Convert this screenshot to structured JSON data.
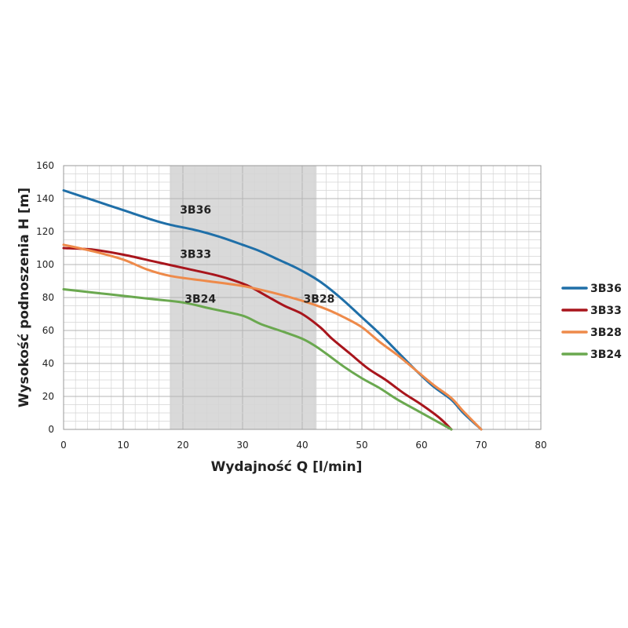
{
  "chart_data": {
    "type": "line",
    "xlabel": "Wydajność Q [l/min]",
    "ylabel": "Wysokość podnoszenia H [m]",
    "xlim": [
      0,
      80
    ],
    "ylim": [
      0,
      160
    ],
    "x_ticks": [
      0,
      10,
      20,
      30,
      40,
      50,
      60,
      70,
      80
    ],
    "y_ticks": [
      0,
      20,
      40,
      60,
      80,
      100,
      120,
      140,
      160
    ],
    "grid": true,
    "minor_grid": true,
    "legend_position": "right",
    "highlight_band": {
      "x": [
        17.8,
        42.4
      ],
      "color": "#d9d9d9"
    },
    "series": [
      {
        "name": "3B36",
        "color": "#1f6fa8",
        "label_at": [
          19.5,
          131
        ],
        "points": [
          [
            0,
            145
          ],
          [
            5,
            139
          ],
          [
            10,
            133
          ],
          [
            15,
            127
          ],
          [
            18,
            124
          ],
          [
            22,
            121
          ],
          [
            26,
            117
          ],
          [
            30,
            112
          ],
          [
            33,
            108
          ],
          [
            36,
            103
          ],
          [
            39,
            98
          ],
          [
            42,
            92
          ],
          [
            44,
            87
          ],
          [
            47,
            78
          ],
          [
            50,
            68
          ],
          [
            53,
            58
          ],
          [
            56,
            47
          ],
          [
            59,
            36
          ],
          [
            62,
            26
          ],
          [
            65,
            18
          ],
          [
            67,
            10
          ],
          [
            70,
            0
          ]
        ]
      },
      {
        "name": "3B33",
        "color": "#a8151c",
        "label_at": [
          19.5,
          104
        ],
        "points": [
          [
            0,
            110
          ],
          [
            5,
            109
          ],
          [
            10,
            106
          ],
          [
            15,
            102
          ],
          [
            20,
            98
          ],
          [
            25,
            94
          ],
          [
            28,
            91
          ],
          [
            31,
            87
          ],
          [
            34,
            81
          ],
          [
            37,
            75
          ],
          [
            40,
            70
          ],
          [
            43,
            62
          ],
          [
            45,
            55
          ],
          [
            48,
            46
          ],
          [
            51,
            37
          ],
          [
            54,
            30
          ],
          [
            57,
            22
          ],
          [
            60,
            15
          ],
          [
            63,
            7
          ],
          [
            65,
            0
          ]
        ]
      },
      {
        "name": "3B28",
        "color": "#ee8a4a",
        "label_at": [
          40.2,
          77
        ],
        "points": [
          [
            0,
            112
          ],
          [
            5,
            108
          ],
          [
            10,
            103
          ],
          [
            14,
            97
          ],
          [
            18,
            93
          ],
          [
            24,
            90
          ],
          [
            30,
            87
          ],
          [
            35,
            83
          ],
          [
            40,
            78
          ],
          [
            44,
            73
          ],
          [
            47,
            68
          ],
          [
            50,
            62
          ],
          [
            53,
            53
          ],
          [
            56,
            45
          ],
          [
            59,
            36
          ],
          [
            62,
            27
          ],
          [
            65,
            19
          ],
          [
            67,
            11
          ],
          [
            70,
            0
          ]
        ]
      },
      {
        "name": "3B24",
        "color": "#6aa84f",
        "label_at": [
          20.3,
          77
        ],
        "points": [
          [
            0,
            85
          ],
          [
            5,
            83
          ],
          [
            10,
            81
          ],
          [
            15,
            79
          ],
          [
            20,
            77
          ],
          [
            25,
            73
          ],
          [
            30,
            69
          ],
          [
            33,
            64
          ],
          [
            37,
            59
          ],
          [
            40,
            55
          ],
          [
            42,
            51
          ],
          [
            44,
            46
          ],
          [
            47,
            38
          ],
          [
            50,
            31
          ],
          [
            53,
            25
          ],
          [
            56,
            18
          ],
          [
            59,
            12
          ],
          [
            62,
            6
          ],
          [
            65,
            0
          ]
        ]
      }
    ]
  }
}
